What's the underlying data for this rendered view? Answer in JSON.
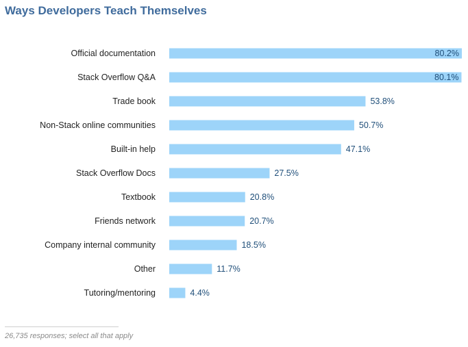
{
  "chart_data": {
    "type": "bar",
    "orientation": "horizontal",
    "title": "Ways Developers Teach Themselves",
    "categories": [
      "Official documentation",
      "Stack Overflow Q&A",
      "Trade book",
      "Non-Stack online communities",
      "Built-in help",
      "Stack Overflow Docs",
      "Textbook",
      "Friends network",
      "Company internal community",
      "Other",
      "Tutoring/mentoring"
    ],
    "values": [
      80.2,
      80.1,
      53.8,
      50.7,
      47.1,
      27.5,
      20.8,
      20.7,
      18.5,
      11.7,
      4.4
    ],
    "value_labels": [
      "80.2%",
      "80.1%",
      "53.8%",
      "50.7%",
      "47.1%",
      "27.5%",
      "20.8%",
      "20.7%",
      "18.5%",
      "11.7%",
      "4.4%"
    ],
    "xlim": [
      0,
      80.2
    ],
    "xlabel": "",
    "ylabel": "",
    "grid": false,
    "bar_color": "#9dd4f9",
    "label_color": "#1f4e79",
    "category_color": "#222222"
  },
  "footnote": "26,735 responses; select all that apply"
}
